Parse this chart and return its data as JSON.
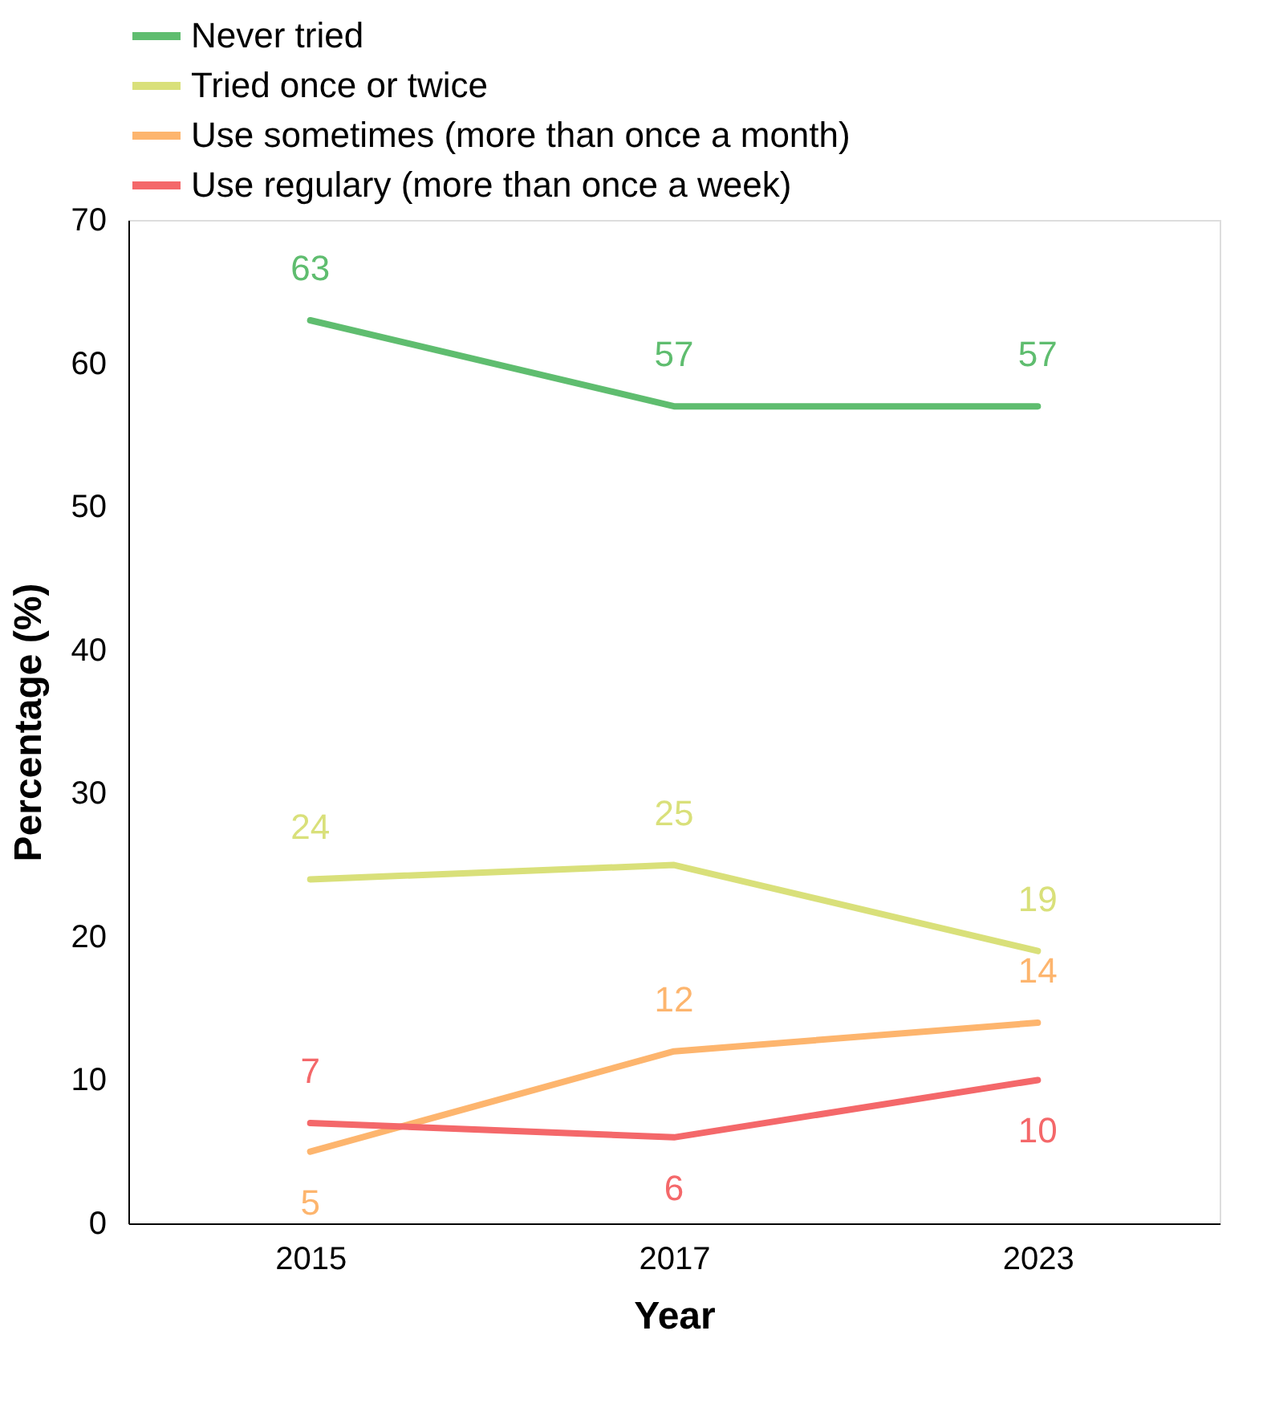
{
  "chart_data": {
    "type": "line",
    "xlabel": "Year",
    "ylabel": "Percentage (%)",
    "categories": [
      "2015",
      "2017",
      "2023"
    ],
    "series": [
      {
        "name": "Never tried",
        "color": "#5fbd6f",
        "values": [
          63,
          57,
          57
        ]
      },
      {
        "name": "Tried once or twice",
        "color": "#d9e07a",
        "values": [
          24,
          25,
          19
        ]
      },
      {
        "name": "Use sometimes (more than once a month)",
        "color": "#fdb56e",
        "values": [
          5,
          12,
          14
        ]
      },
      {
        "name": "Use regulary (more than once a week)",
        "color": "#f4686a",
        "values": [
          7,
          6,
          10
        ]
      }
    ],
    "ylim": [
      0,
      70
    ],
    "yticks": [
      0,
      10,
      20,
      30,
      40,
      50,
      60,
      70
    ],
    "grid": false,
    "legend": "top",
    "data_labels": true,
    "marker": "none",
    "line_style": "solid"
  }
}
